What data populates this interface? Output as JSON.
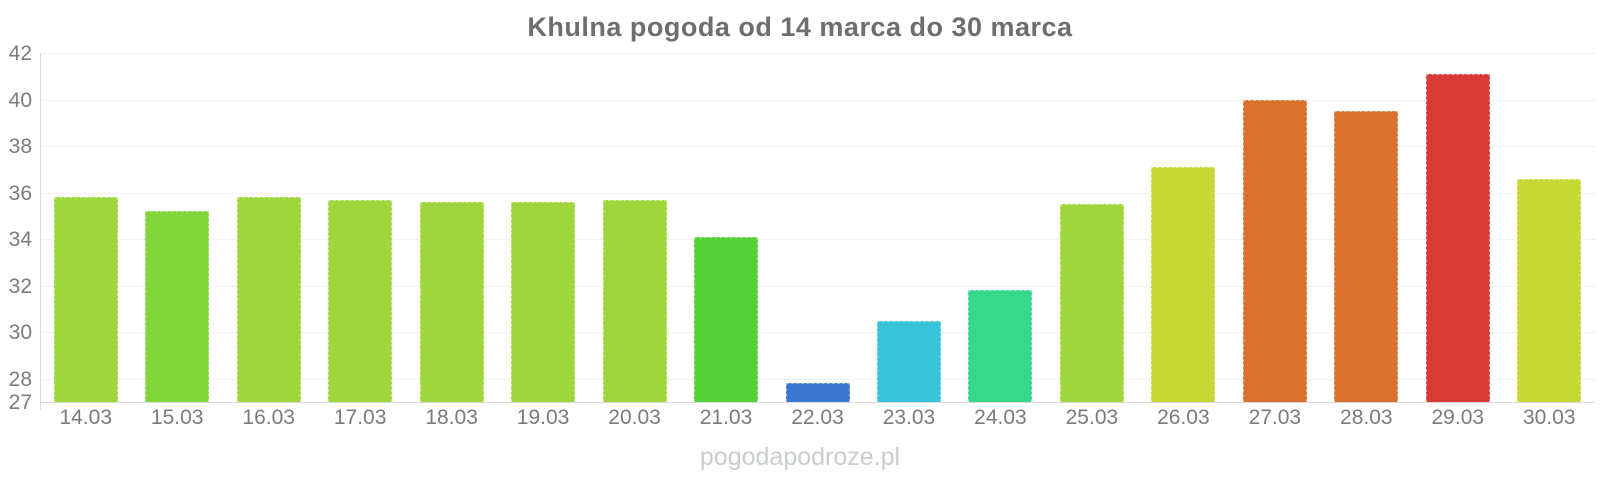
{
  "title": "Khulna pogoda od 14 marca do 30 marca",
  "watermark": "pogodapodroze.pl",
  "chart_data": {
    "type": "bar",
    "title": "Khulna pogoda od 14 marca do 30 marca",
    "categories": [
      "14.03",
      "15.03",
      "16.03",
      "17.03",
      "18.03",
      "19.03",
      "20.03",
      "21.03",
      "22.03",
      "23.03",
      "24.03",
      "25.03",
      "26.03",
      "27.03",
      "28.03",
      "29.03",
      "30.03"
    ],
    "values": [
      35.8,
      35.2,
      35.8,
      35.7,
      35.6,
      35.6,
      35.7,
      34.1,
      27.8,
      30.5,
      31.8,
      35.5,
      37.1,
      40.0,
      39.5,
      41.1,
      36.6
    ],
    "bar_colors": [
      "#9ed63b",
      "#82d63b",
      "#9ed63b",
      "#9ed63b",
      "#9ed63b",
      "#9ed63b",
      "#9ed63b",
      "#55d138",
      "#3a77d2",
      "#38c4d8",
      "#36d88c",
      "#9ed63b",
      "#c5d833",
      "#d8722e",
      "#d8722e",
      "#d93a35",
      "#c5d833"
    ],
    "xlabel": "",
    "ylabel": "",
    "ylim": [
      27,
      42
    ],
    "yticks": [
      27,
      28,
      30,
      32,
      34,
      36,
      38,
      40,
      42
    ],
    "grid": "dotted-horizontal",
    "legend": false
  },
  "colors": {
    "title": "#6e6e6e",
    "tick_label": "#7b7b7b",
    "gridline": "#e6e6e6",
    "axis_line": "#d9d9d9",
    "watermark": "#c8cecb",
    "background": "#ffffff"
  }
}
